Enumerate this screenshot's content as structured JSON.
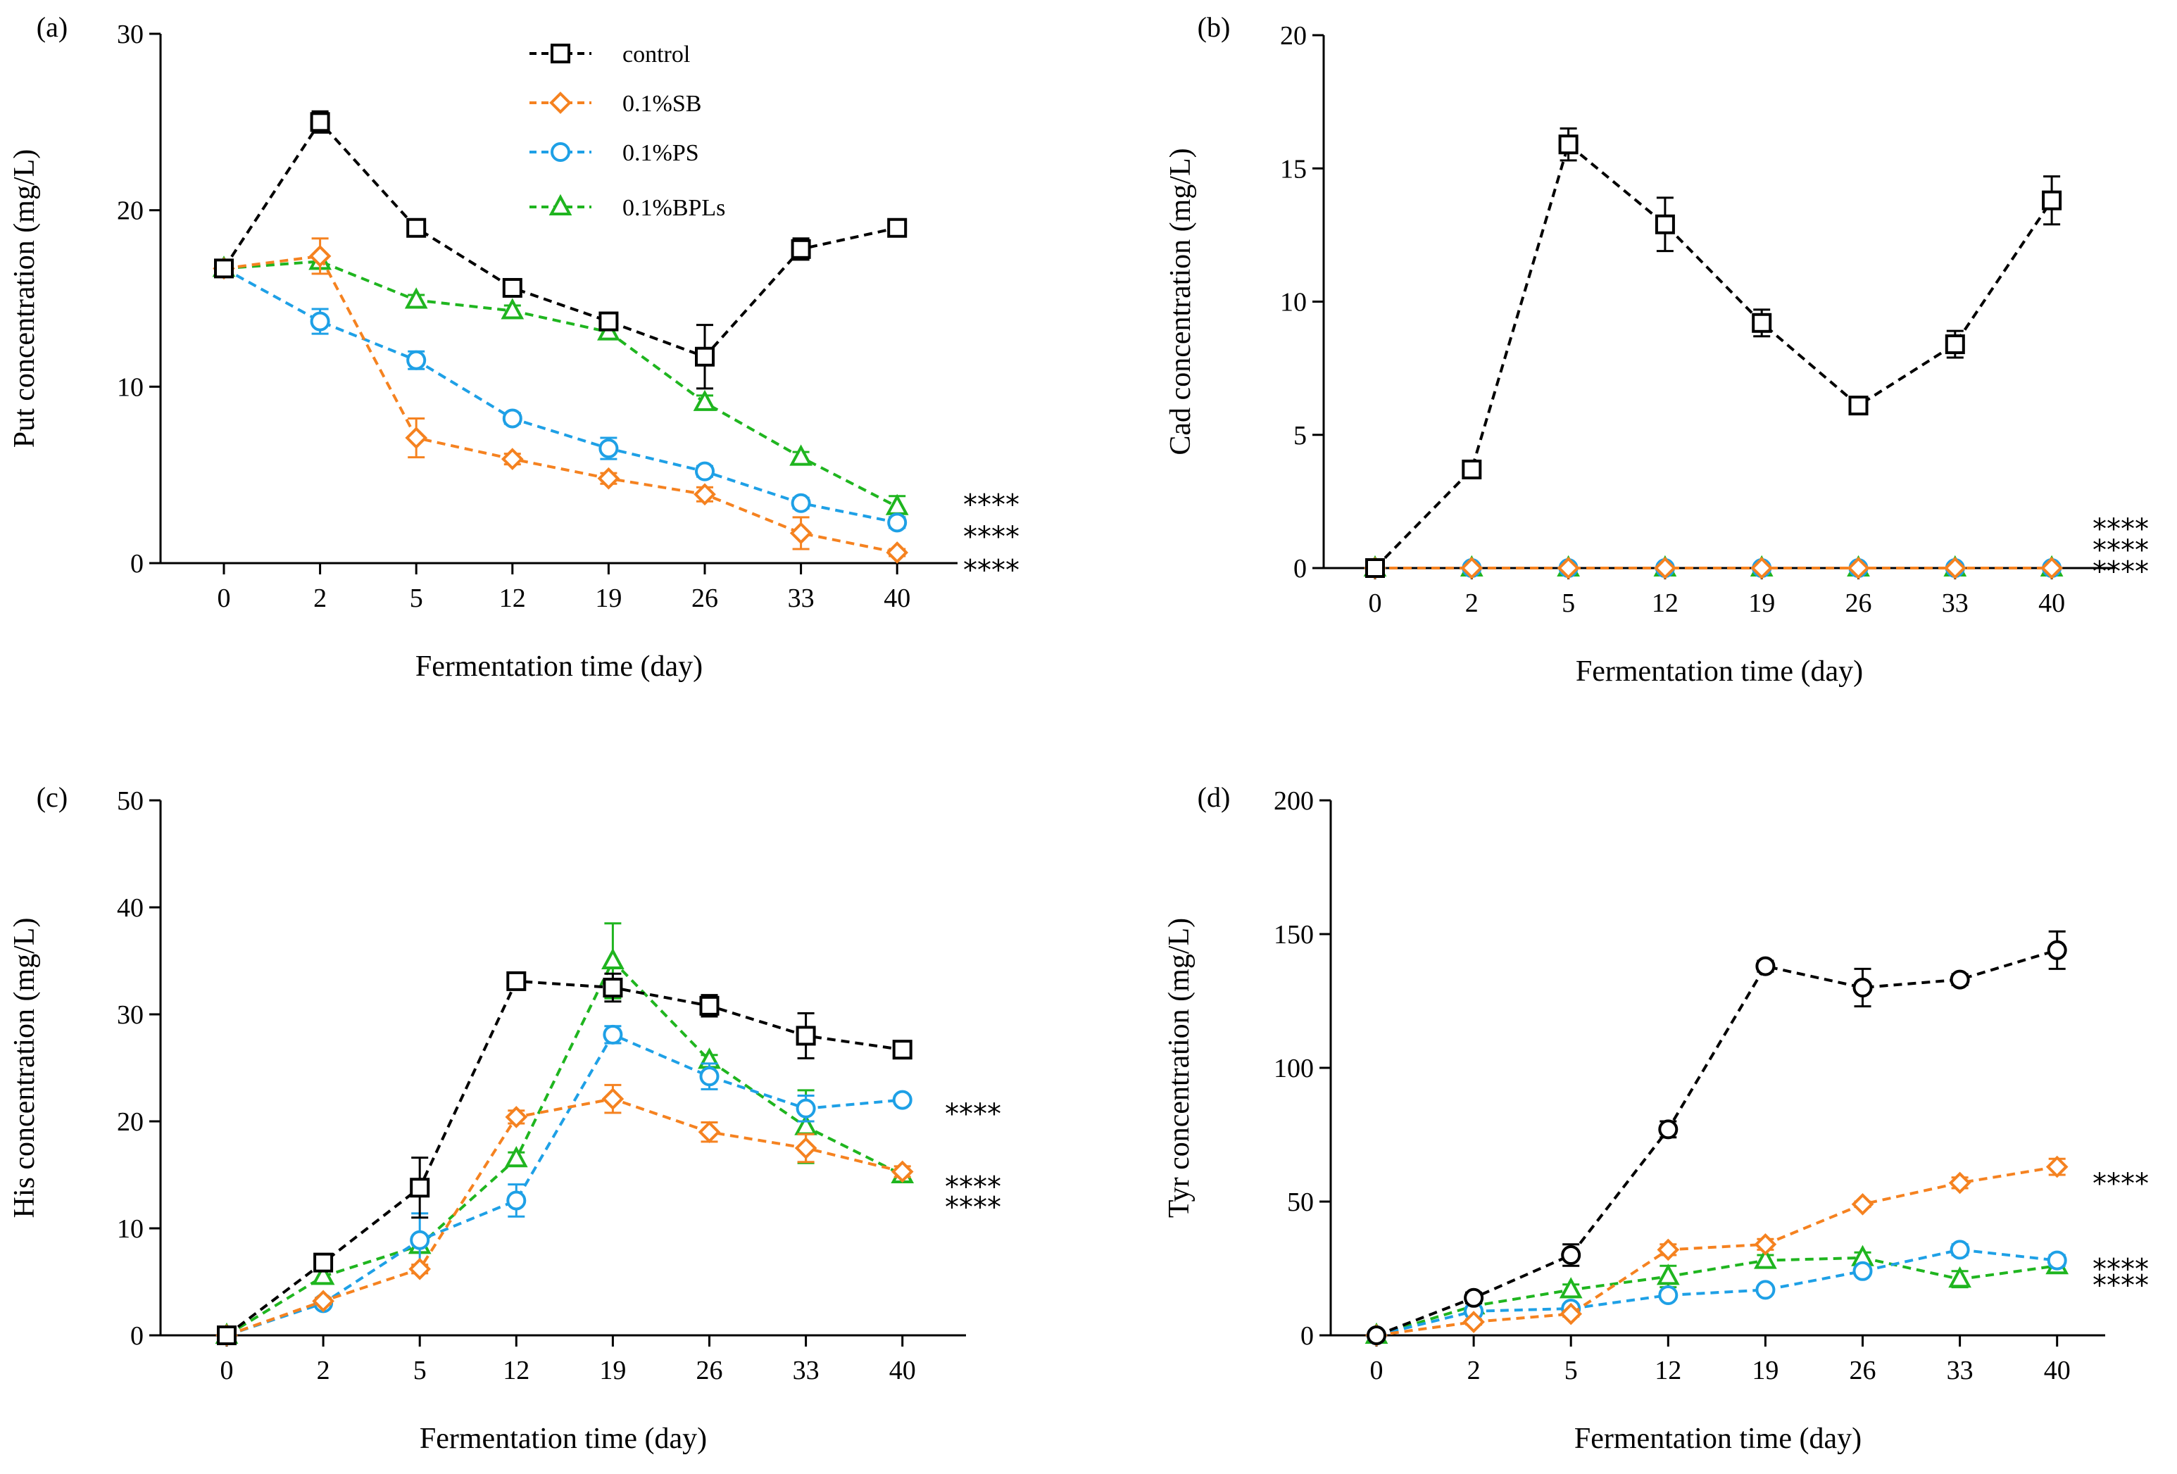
{
  "colors": {
    "control": "#000000",
    "sb": "#f58220",
    "ps": "#1ea0e6",
    "bpls": "#1fb51f"
  },
  "legend": [
    {
      "label": "control",
      "series": "control",
      "marker": "square"
    },
    {
      "label": "0.1%SB",
      "series": "sb",
      "marker": "diamond"
    },
    {
      "label": "0.1%PS",
      "series": "ps",
      "marker": "circle"
    },
    {
      "label": "0.1%BPLs",
      "series": "bpls",
      "marker": "triangle"
    }
  ],
  "chart_data": [
    {
      "type": "line",
      "panel": "(a)",
      "xlabel": "Fermentation time (day)",
      "ylabel": "Put concentration (mg/L)",
      "categories": [
        "0",
        "2",
        "5",
        "12",
        "19",
        "26",
        "33",
        "40"
      ],
      "ylim": [
        0,
        30
      ],
      "yticks": [
        0,
        10,
        20,
        30
      ],
      "annotations": [
        "****",
        "****",
        "****"
      ],
      "annotation_y": [
        3.8,
        2.0,
        0.1
      ],
      "series": [
        {
          "name": "control",
          "marker": "square",
          "values": [
            16.7,
            25.0,
            19.0,
            15.6,
            13.7,
            11.7,
            17.8,
            19.0
          ],
          "err": [
            0.3,
            0.6,
            0.3,
            0.3,
            0.3,
            1.8,
            0.6,
            0.3
          ]
        },
        {
          "name": "0.1%SB",
          "marker": "diamond",
          "values": [
            16.7,
            17.4,
            7.1,
            5.9,
            4.8,
            3.9,
            1.7,
            0.6
          ],
          "err": [
            0.3,
            1.0,
            1.1,
            0.3,
            0.3,
            0.4,
            0.9,
            0.2
          ]
        },
        {
          "name": "0.1%PS",
          "marker": "circle",
          "values": [
            16.7,
            13.7,
            11.5,
            8.2,
            6.5,
            5.2,
            3.4,
            2.3
          ],
          "err": [
            0.3,
            0.7,
            0.5,
            0.3,
            0.6,
            0.3,
            0.3,
            0.3
          ]
        },
        {
          "name": "0.1%BPLs",
          "marker": "triangle",
          "values": [
            16.7,
            17.1,
            14.9,
            14.3,
            13.1,
            9.1,
            6.0,
            3.2
          ],
          "err": [
            0.3,
            0.4,
            0.3,
            0.3,
            0.3,
            0.4,
            0.3,
            0.6
          ]
        }
      ]
    },
    {
      "type": "line",
      "panel": "(b)",
      "xlabel": "Fermentation time (day)",
      "ylabel": "Cad concentration (mg/L)",
      "categories": [
        "0",
        "2",
        "5",
        "12",
        "19",
        "26",
        "33",
        "40"
      ],
      "ylim": [
        0,
        20
      ],
      "yticks": [
        0,
        5,
        10,
        15,
        20
      ],
      "annotations": [
        "****",
        "****",
        "****"
      ],
      "annotation_y": [
        1.8,
        1.0,
        0.2
      ],
      "series": [
        {
          "name": "control",
          "marker": "square",
          "values": [
            0,
            3.7,
            15.9,
            12.9,
            9.2,
            6.1,
            8.4,
            13.8
          ],
          "err": [
            0,
            0.3,
            0.6,
            1.0,
            0.5,
            0.3,
            0.5,
            0.9
          ]
        },
        {
          "name": "0.1%SB",
          "marker": "diamond",
          "values": [
            0,
            0,
            0,
            0,
            0,
            0,
            0,
            0
          ],
          "err": [
            0,
            0,
            0,
            0,
            0,
            0,
            0,
            0
          ]
        },
        {
          "name": "0.1%PS",
          "marker": "circle",
          "values": [
            0,
            0,
            0,
            0,
            0,
            0,
            0,
            0
          ],
          "err": [
            0,
            0,
            0,
            0,
            0,
            0,
            0,
            0
          ]
        },
        {
          "name": "0.1%BPLs",
          "marker": "triangle",
          "values": [
            0,
            0,
            0,
            0,
            0,
            0,
            0,
            0
          ],
          "err": [
            0,
            0,
            0,
            0,
            0,
            0,
            0,
            0
          ]
        }
      ]
    },
    {
      "type": "line",
      "panel": "(c)",
      "xlabel": "Fermentation time (day)",
      "ylabel": "His concentration (mg/L)",
      "categories": [
        "0",
        "2",
        "5",
        "12",
        "19",
        "26",
        "33",
        "40"
      ],
      "ylim": [
        0,
        50
      ],
      "yticks": [
        0,
        10,
        20,
        30,
        40,
        50
      ],
      "annotations": [
        "****",
        "****",
        "****"
      ],
      "annotation_y": [
        21.5,
        14.7,
        12.8
      ],
      "series": [
        {
          "name": "control",
          "marker": "square",
          "values": [
            0,
            6.8,
            13.8,
            33.1,
            32.5,
            30.8,
            28.0,
            26.7
          ],
          "err": [
            0,
            0.5,
            2.8,
            0.4,
            1.3,
            1.0,
            2.1,
            0.5
          ]
        },
        {
          "name": "0.1%SB",
          "marker": "diamond",
          "values": [
            0,
            3.2,
            6.2,
            20.4,
            22.1,
            19.0,
            17.5,
            15.3
          ],
          "err": [
            0,
            0.3,
            0.4,
            0.6,
            1.3,
            0.9,
            1.3,
            0.5
          ]
        },
        {
          "name": "0.1%PS",
          "marker": "circle",
          "values": [
            0,
            3.0,
            8.9,
            12.6,
            28.1,
            24.2,
            21.2,
            22.0
          ],
          "err": [
            0,
            0.3,
            2.5,
            1.5,
            0.8,
            1.2,
            1.2,
            0.4
          ]
        },
        {
          "name": "0.1%BPLs",
          "marker": "triangle",
          "values": [
            0,
            5.5,
            8.4,
            16.5,
            35.0,
            25.7,
            19.5,
            15.0
          ],
          "err": [
            0,
            0.6,
            0.5,
            0.6,
            3.5,
            0.5,
            3.4,
            0.4
          ]
        }
      ]
    },
    {
      "type": "line",
      "panel": "(d)",
      "xlabel": "Fermentation time (day)",
      "ylabel": "Tyr concentration (mg/L)",
      "categories": [
        "0",
        "2",
        "5",
        "12",
        "19",
        "26",
        "33",
        "40"
      ],
      "ylim": [
        0,
        200
      ],
      "yticks": [
        0,
        50,
        100,
        150,
        200
      ],
      "annotations": [
        "****",
        "****",
        "****"
      ],
      "annotation_y": [
        60,
        28,
        22
      ],
      "series": [
        {
          "name": "control",
          "marker": "circle",
          "values": [
            0,
            14,
            30,
            77,
            138,
            130,
            133,
            144
          ],
          "err": [
            0,
            2,
            4,
            3,
            2,
            7,
            2,
            7
          ]
        },
        {
          "name": "0.1%SB",
          "marker": "diamond",
          "values": [
            0,
            5,
            8,
            32,
            34,
            49,
            57,
            63
          ],
          "err": [
            0,
            1,
            1,
            2,
            2,
            1,
            2,
            3
          ]
        },
        {
          "name": "0.1%PS",
          "marker": "circle",
          "values": [
            0,
            9,
            10,
            15,
            17,
            24,
            32,
            28
          ],
          "err": [
            0,
            1,
            1,
            1,
            1,
            1,
            2,
            2
          ]
        },
        {
          "name": "0.1%BPLs",
          "marker": "triangle",
          "values": [
            0,
            11,
            17,
            22,
            28,
            29,
            21,
            26
          ],
          "err": [
            0,
            1,
            2,
            4,
            2,
            2,
            3,
            2
          ]
        }
      ]
    }
  ]
}
